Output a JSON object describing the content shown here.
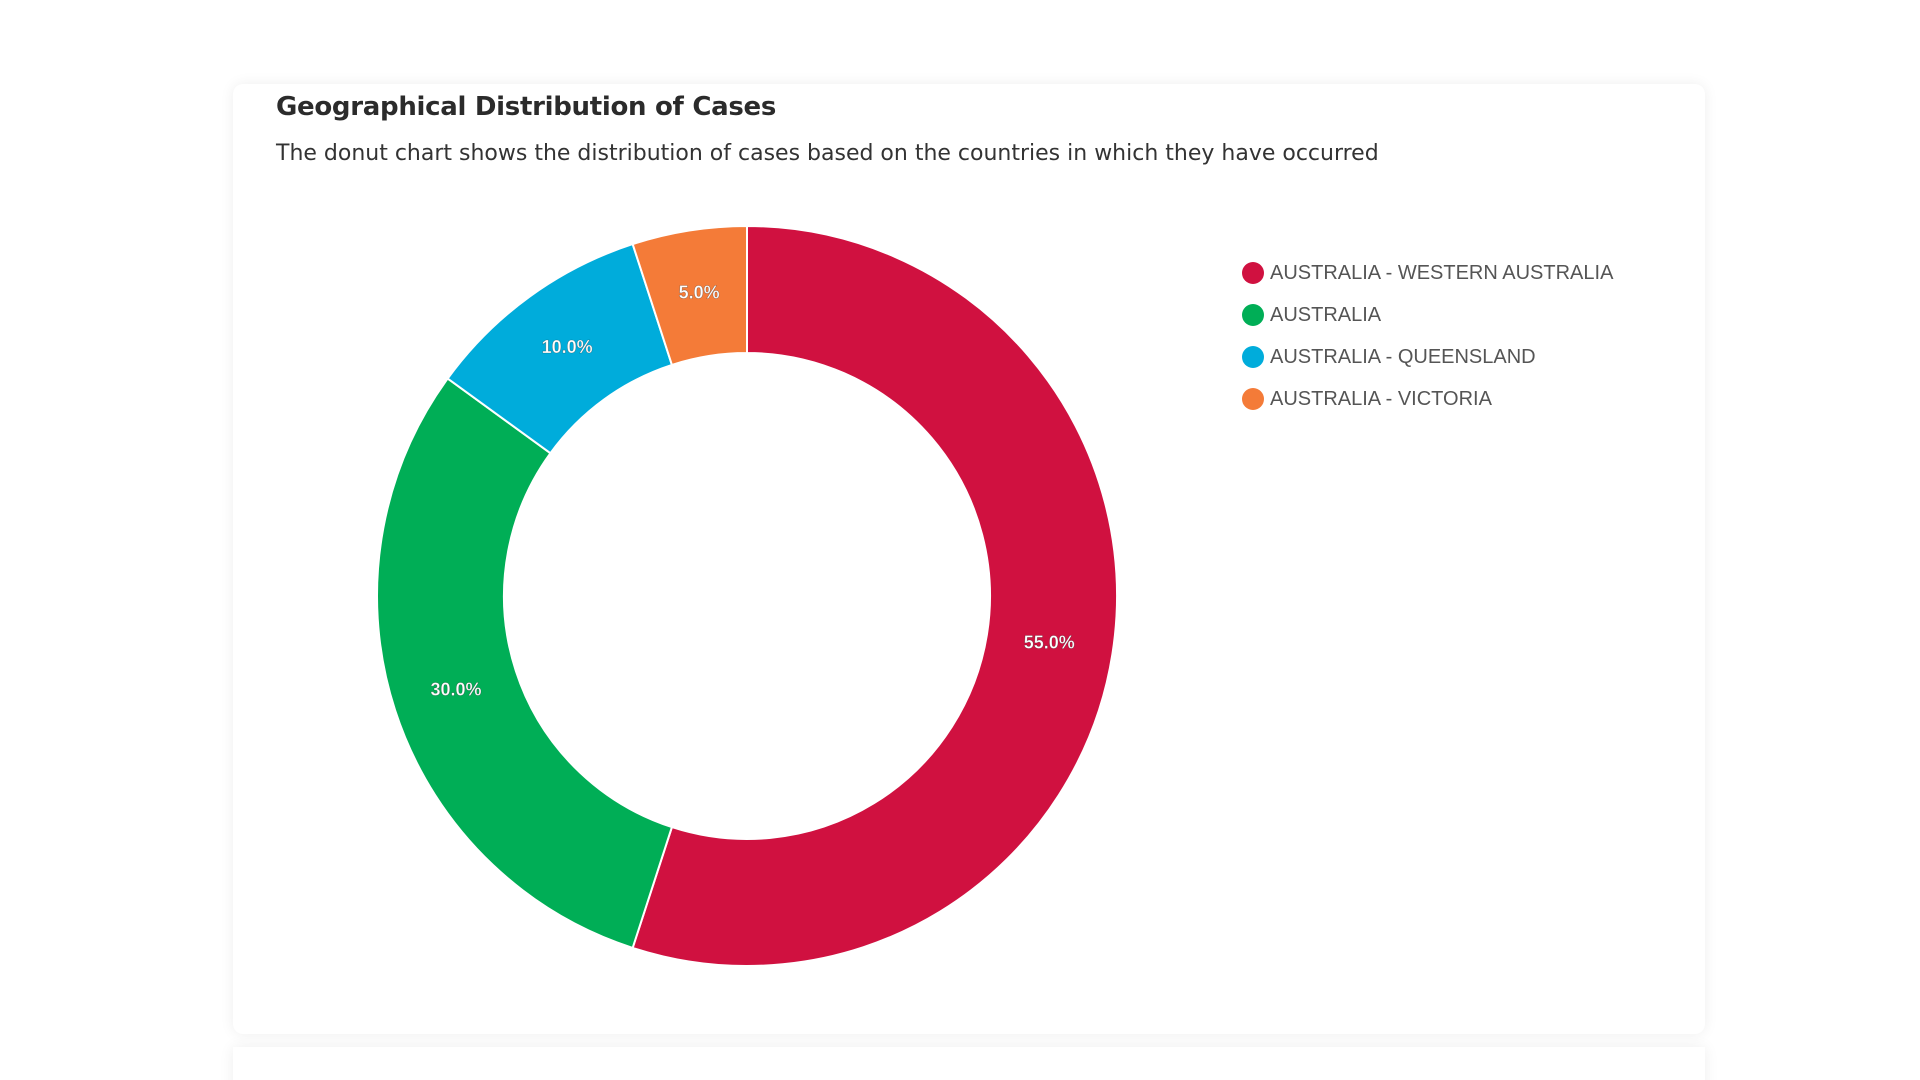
{
  "header": {
    "title": "Geographical Distribution of Cases",
    "subtitle": "The donut chart shows the distribution of cases based on the countries in which they have occurred"
  },
  "chart_data": {
    "type": "pie",
    "variant": "donut",
    "categories": [
      "AUSTRALIA - WESTERN AUSTRALIA",
      "AUSTRALIA",
      "AUSTRALIA - QUEENSLAND",
      "AUSTRALIA - VICTORIA"
    ],
    "values": [
      55.0,
      30.0,
      10.0,
      5.0
    ],
    "labels": [
      "55.0%",
      "30.0%",
      "10.0%",
      "5.0%"
    ],
    "colors": [
      "#D01140",
      "#00AE56",
      "#00ACDB",
      "#F47B38"
    ],
    "legend_position": "right",
    "start_angle": "top, clockwise"
  }
}
